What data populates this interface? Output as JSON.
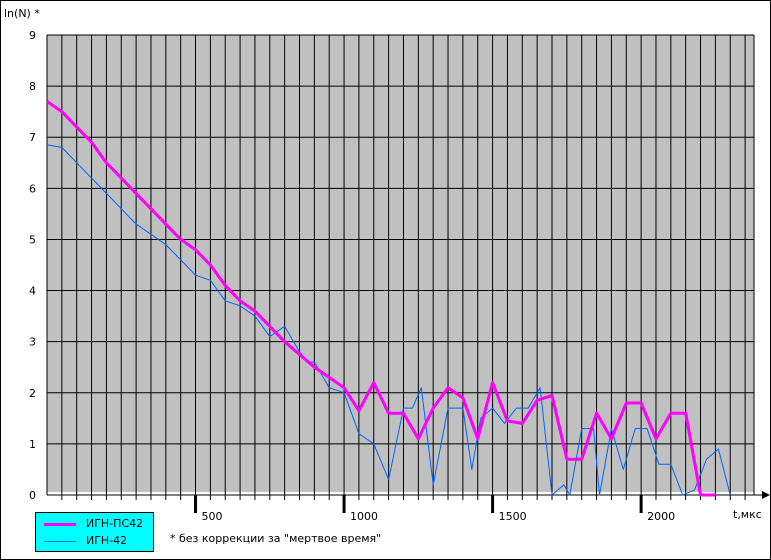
{
  "chart_data": {
    "type": "line",
    "ylabel": "ln(N) *",
    "xlabel": "t,мкс",
    "ylim": [
      0,
      9
    ],
    "xlim": [
      0,
      2380
    ],
    "yticks": [
      "0",
      "1",
      "2",
      "3",
      "4",
      "5",
      "6",
      "7",
      "8",
      "9"
    ],
    "xticks": [
      "500",
      "1000",
      "1500",
      "2000"
    ],
    "grid": true,
    "legend_position": "bottom-left",
    "background_color": "#c0c0c0",
    "series": [
      {
        "name": "ИГН-ПС42",
        "color": "#ff00ff",
        "x": [
          0,
          50,
          100,
          150,
          200,
          250,
          300,
          350,
          400,
          450,
          500,
          550,
          600,
          650,
          700,
          750,
          800,
          850,
          900,
          950,
          1000,
          1050,
          1100,
          1150,
          1200,
          1250,
          1300,
          1350,
          1400,
          1450,
          1500,
          1550,
          1600,
          1650,
          1700,
          1750,
          1800,
          1850,
          1900,
          1950,
          2000,
          2050,
          2100,
          2150,
          2200,
          2250
        ],
        "y": [
          7.7,
          7.5,
          7.2,
          6.9,
          6.5,
          6.2,
          5.9,
          5.6,
          5.3,
          5.0,
          4.8,
          4.5,
          4.1,
          3.8,
          3.6,
          3.3,
          3.0,
          2.75,
          2.5,
          2.3,
          2.1,
          1.65,
          2.2,
          1.6,
          1.6,
          1.1,
          1.7,
          2.1,
          1.9,
          1.1,
          2.2,
          1.45,
          1.4,
          1.85,
          1.95,
          0.7,
          0.7,
          1.6,
          1.1,
          1.8,
          1.8,
          1.1,
          1.6,
          1.6,
          0.0,
          0.0
        ]
      },
      {
        "name": "ИГН-42",
        "color": "#0066ff",
        "x": [
          0,
          50,
          100,
          150,
          200,
          250,
          300,
          350,
          400,
          450,
          500,
          550,
          600,
          650,
          700,
          750,
          800,
          850,
          880,
          900,
          950,
          1000,
          1050,
          1100,
          1150,
          1200,
          1230,
          1260,
          1300,
          1350,
          1400,
          1430,
          1460,
          1500,
          1540,
          1580,
          1620,
          1660,
          1700,
          1740,
          1760,
          1800,
          1840,
          1860,
          1900,
          1940,
          1980,
          2020,
          2060,
          2100,
          2140,
          2180,
          2220,
          2260,
          2300
        ],
        "y": [
          6.85,
          6.8,
          6.5,
          6.2,
          5.9,
          5.6,
          5.3,
          5.1,
          4.9,
          4.6,
          4.3,
          4.2,
          3.8,
          3.7,
          3.5,
          3.1,
          3.3,
          2.8,
          2.6,
          2.6,
          2.1,
          2.0,
          1.2,
          1.0,
          0.3,
          1.7,
          1.7,
          2.1,
          0.2,
          1.7,
          1.7,
          0.5,
          1.5,
          1.7,
          1.4,
          1.7,
          1.7,
          2.1,
          0.0,
          0.2,
          0.0,
          1.3,
          1.3,
          0.0,
          1.3,
          0.5,
          1.3,
          1.3,
          0.6,
          0.6,
          0.0,
          0.1,
          0.7,
          0.9,
          0.0
        ]
      }
    ],
    "footnote": "* без коррекции за \"мертвое время\""
  }
}
